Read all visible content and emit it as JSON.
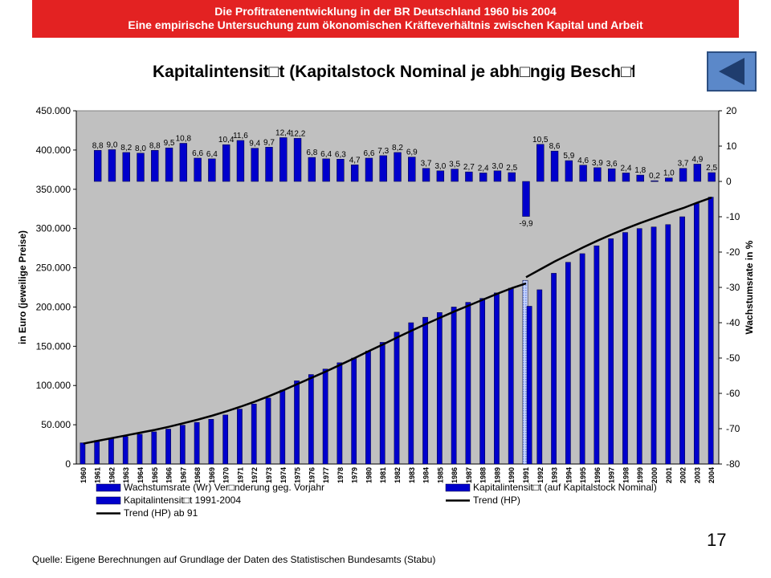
{
  "header": {
    "line1": "Die Profitratenentwicklung in der BR Deutschland 1960 bis 2004",
    "line2": "Eine empirische Untersuchung zum ökonomischen Kräfteverhältnis zwischen Kapital und Arbeit"
  },
  "slide_title": "Kapitalintensit□t (Kapitalstock Nominal je abh□ngig Besch□ftigte",
  "back_button": {
    "icon": "triangle-left-icon",
    "color": "#5b88c9"
  },
  "page_number": "17",
  "source": "Quelle: Eigene Berechnungen auf Grundlage der Daten des Statistischen Bundesamts (Stabu)",
  "colors": {
    "plot_bg": "#c0c0c0",
    "bar_blue": "#0000cc",
    "bar_hatched": "#6f8fe8",
    "trend": "#000000",
    "banner": "#e32222"
  },
  "chart_data": {
    "type": "bar",
    "categories": [
      "1960",
      "1961",
      "1962",
      "1963",
      "1964",
      "1965",
      "1966",
      "1967",
      "1968",
      "1969",
      "1970",
      "1971",
      "1972",
      "1973",
      "1974",
      "1975",
      "1976",
      "1977",
      "1978",
      "1979",
      "1980",
      "1981",
      "1982",
      "1983",
      "1984",
      "1985",
      "1986",
      "1987",
      "1988",
      "1989",
      "1990",
      "1991",
      "1992",
      "1993",
      "1994",
      "1995",
      "1996",
      "1997",
      "1998",
      "1999",
      "2000",
      "2001",
      "2002",
      "2003",
      "2004"
    ],
    "ylabel": "in Euro (jeweilige Preise)",
    "y2label": "Wachstumsrate in %",
    "ylim": [
      0,
      450000
    ],
    "y2lim": [
      -80,
      20
    ],
    "yticks": [
      "0",
      "50.000",
      "100.000",
      "150.000",
      "200.000",
      "250.000",
      "300.000",
      "350.000",
      "400.000",
      "450.000"
    ],
    "y2ticks": [
      "-80",
      "-70",
      "-60",
      "-50",
      "-40",
      "-30",
      "-20",
      "-10",
      "0",
      "10",
      "20"
    ],
    "series": [
      {
        "name": "Wachstumsrate (Wr) Ver□nderung geg. Vorjahr",
        "axis": "right",
        "values": [
          null,
          8.8,
          9.0,
          8.2,
          8.0,
          8.8,
          9.5,
          10.8,
          6.6,
          6.4,
          10.4,
          11.6,
          9.4,
          9.7,
          12.4,
          12.2,
          6.8,
          6.4,
          6.3,
          4.7,
          6.6,
          7.3,
          8.2,
          6.9,
          3.7,
          3.0,
          3.5,
          2.7,
          2.4,
          3.0,
          2.5,
          -9.9,
          10.5,
          8.6,
          5.9,
          4.6,
          3.9,
          3.6,
          2.4,
          1.8,
          0.2,
          1.0,
          3.7,
          4.9,
          2.5
        ],
        "labels": [
          "",
          "8,8",
          "9,0",
          "8,2",
          "8,0",
          "8,8",
          "9,5",
          "10,8",
          "6,6",
          "6,4",
          "10,4",
          "11,6",
          "9,4",
          "9,7",
          "12,4",
          "12,2",
          "6,8",
          "6,4",
          "6,3",
          "4,7",
          "6,6",
          "7,3",
          "8,2",
          "6,9",
          "3,7",
          "3,0",
          "3,5",
          "2,7",
          "2,4",
          "3,0",
          "2,5",
          "-9,9",
          "10,5",
          "8,6",
          "5,9",
          "4,6",
          "3,9",
          "3,6",
          "2,4",
          "1,8",
          "0,2",
          "1,0",
          "3,7",
          "4,9",
          "2,5"
        ]
      },
      {
        "name": "Kapitalintensit□t (auf Kapitalstock Nominal)",
        "axis": "left",
        "values": [
          27000,
          30000,
          32500,
          35000,
          38000,
          41000,
          44500,
          49500,
          53000,
          57000,
          62500,
          70000,
          76500,
          84000,
          94000,
          106000,
          114000,
          121000,
          129000,
          135000,
          144000,
          155000,
          168000,
          180000,
          187000,
          193000,
          200000,
          206000,
          211000,
          218000,
          224000,
          234000,
          null,
          null,
          null,
          null,
          null,
          null,
          null,
          null,
          null,
          null,
          null,
          null,
          null
        ]
      },
      {
        "name": "Kapitalintensit□t 1991-2004",
        "axis": "left",
        "values": [
          null,
          null,
          null,
          null,
          null,
          null,
          null,
          null,
          null,
          null,
          null,
          null,
          null,
          null,
          null,
          null,
          null,
          null,
          null,
          null,
          null,
          null,
          null,
          null,
          null,
          null,
          null,
          null,
          null,
          null,
          null,
          201000,
          222000,
          243000,
          257000,
          268000,
          278000,
          287000,
          295000,
          300000,
          302000,
          305000,
          315000,
          332000,
          340000
        ]
      },
      {
        "name": "Trend (HP)",
        "axis": "left",
        "type": "line",
        "values": [
          26000,
          29500,
          33000,
          36500,
          40000,
          43500,
          47500,
          52000,
          56500,
          61500,
          67000,
          73000,
          79500,
          86500,
          94000,
          102000,
          110000,
          118000,
          126500,
          135000,
          144000,
          152500,
          161500,
          170000,
          178500,
          186500,
          194500,
          202000,
          209500,
          217000,
          224000,
          230000,
          null,
          null,
          null,
          null,
          null,
          null,
          null,
          null,
          null,
          null,
          null,
          null,
          null
        ]
      },
      {
        "name": "Trend (HP) ab 91",
        "axis": "left",
        "type": "line",
        "values": [
          null,
          null,
          null,
          null,
          null,
          null,
          null,
          null,
          null,
          null,
          null,
          null,
          null,
          null,
          null,
          null,
          null,
          null,
          null,
          null,
          null,
          null,
          null,
          null,
          null,
          null,
          null,
          null,
          null,
          null,
          null,
          238000,
          248000,
          258000,
          267000,
          276000,
          284500,
          292500,
          300000,
          307000,
          313500,
          320000,
          326000,
          333000,
          339500
        ]
      }
    ],
    "legend": [
      {
        "label": "Wachstumsrate (Wr) Ver□nderung geg. Vorjahr",
        "kind": "bar"
      },
      {
        "label": "Kapitalintensit□t (auf Kapitalstock Nominal)",
        "kind": "bar"
      },
      {
        "label": "Kapitalintensit□t 1991-2004",
        "kind": "bar"
      },
      {
        "label": "Trend (HP)",
        "kind": "line"
      },
      {
        "label": "Trend (HP) ab 91",
        "kind": "line"
      }
    ],
    "legend_position": "bottom"
  }
}
